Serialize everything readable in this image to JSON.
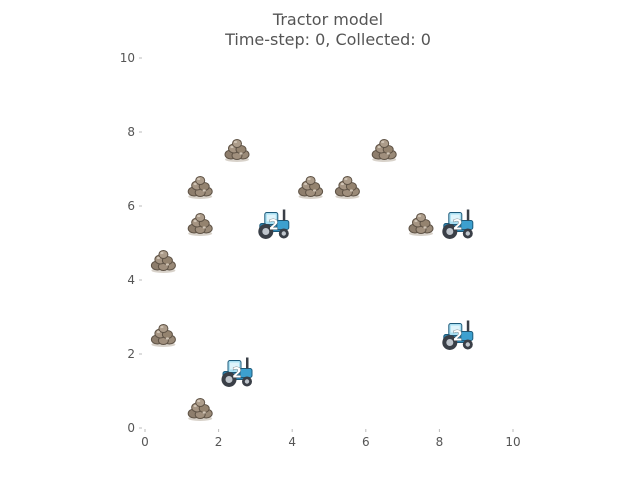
{
  "title": {
    "line1": "Tractor model",
    "line2": "Time-step: 0, Collected: 0"
  },
  "colors": {
    "rock_light": "#a08f7d",
    "rock_dark": "#5f5346",
    "tractor_body": "#3da0cf",
    "tractor_cabin": "#a9dff2",
    "tractor_tire": "#3a3f47",
    "axis_text": "#555555"
  },
  "chart_data": {
    "type": "scatter",
    "title": "Tractor model\nTime-step: 0, Collected: 0",
    "xlabel": "",
    "ylabel": "",
    "xlim": [
      0,
      10
    ],
    "ylim": [
      0,
      10
    ],
    "xticks": [
      0,
      2,
      4,
      6,
      8,
      10
    ],
    "yticks": [
      0,
      2,
      4,
      6,
      8,
      10
    ],
    "grid": false,
    "series": [
      {
        "name": "rocks",
        "icon": "rock-pile-icon",
        "points": [
          {
            "x": 1.5,
            "y": 0.5
          },
          {
            "x": 0.5,
            "y": 2.5
          },
          {
            "x": 0.5,
            "y": 4.5
          },
          {
            "x": 1.5,
            "y": 5.5
          },
          {
            "x": 1.5,
            "y": 6.5
          },
          {
            "x": 2.5,
            "y": 7.5
          },
          {
            "x": 4.5,
            "y": 6.5
          },
          {
            "x": 5.5,
            "y": 6.5
          },
          {
            "x": 6.5,
            "y": 7.5
          },
          {
            "x": 7.5,
            "y": 5.5
          }
        ]
      },
      {
        "name": "tractors",
        "icon": "tractor-icon",
        "points": [
          {
            "x": 2.5,
            "y": 1.5,
            "label": "2"
          },
          {
            "x": 3.5,
            "y": 5.5,
            "label": "2"
          },
          {
            "x": 8.5,
            "y": 5.5,
            "label": "2"
          },
          {
            "x": 8.5,
            "y": 2.5,
            "label": "2"
          }
        ]
      }
    ]
  }
}
